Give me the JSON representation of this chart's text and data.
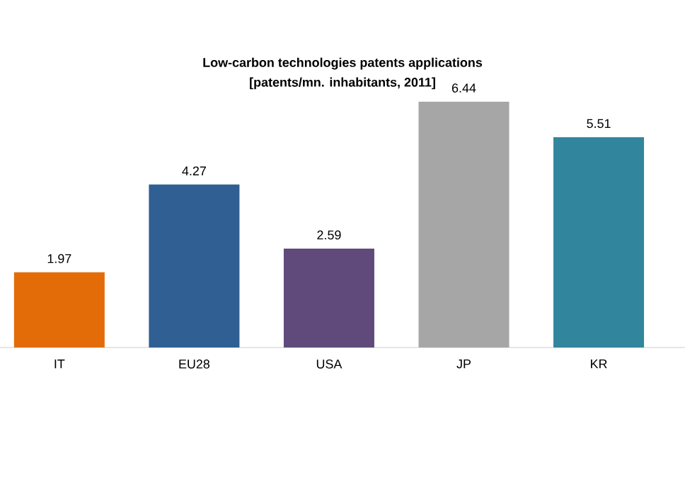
{
  "chart_data": {
    "type": "bar",
    "title": "Low-carbon technologies patents applications\n[patents/mn. inhabitants, 2011]",
    "categories": [
      "IT",
      "EU28",
      "USA",
      "JP",
      "KR"
    ],
    "values": [
      1.97,
      4.27,
      2.59,
      6.44,
      5.51
    ],
    "colors": [
      "#e36c09",
      "#2f5f93",
      "#604a7b",
      "#a6a6a6",
      "#31859c"
    ],
    "data_labels": true
  }
}
